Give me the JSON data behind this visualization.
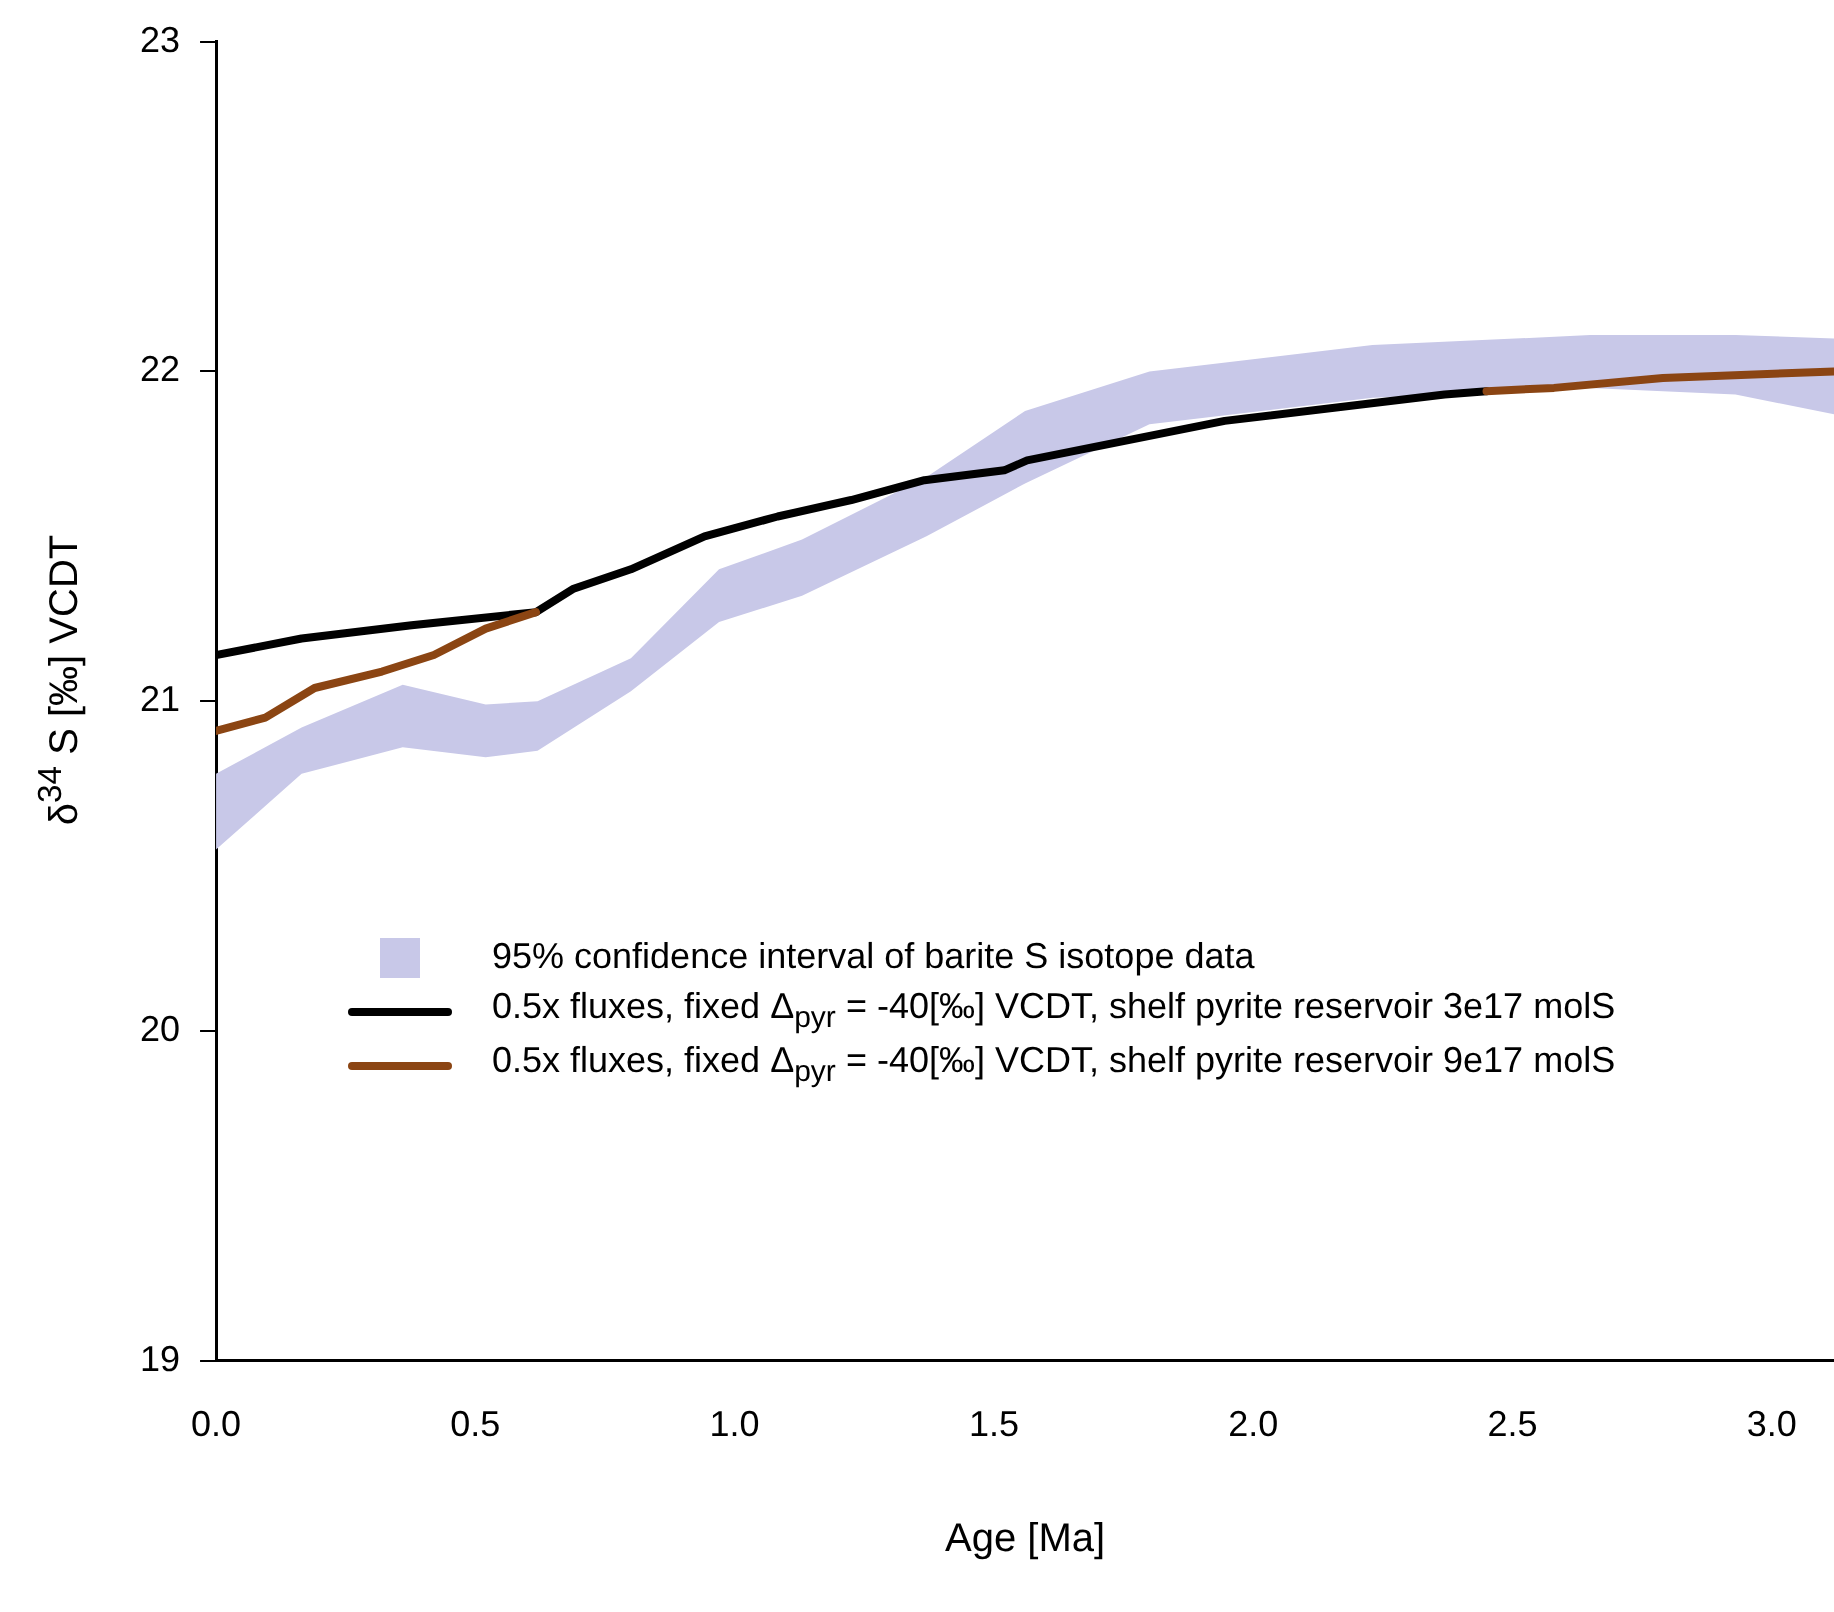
{
  "chart_data": {
    "type": "line",
    "xlabel": "Age [Ma]",
    "ylabel": "δ$^{34}$ S [‰] VCDT",
    "xlim": [
      0,
      3.12
    ],
    "ylim": [
      19,
      23
    ],
    "xticks": [
      {
        "value": 0,
        "label": "0.0"
      },
      {
        "value": 0.5,
        "label": "0.5"
      },
      {
        "value": 1,
        "label": "1.0"
      },
      {
        "value": 1.5,
        "label": "1.5"
      },
      {
        "value": 2,
        "label": "2.0"
      },
      {
        "value": 2.5,
        "label": "2.5"
      },
      {
        "value": 3,
        "label": "3.0"
      }
    ],
    "yticks": [
      19,
      20,
      21,
      22,
      23
    ],
    "grid": false,
    "legend": "bottom left",
    "marker": "none",
    "line_style": "solid",
    "series": [
      {
        "name": "95% confidence interval of barite S isotope data",
        "type": "area",
        "color": "#c8c8e8",
        "x": [
          0,
          0.165,
          0.36,
          0.52,
          0.62,
          0.8,
          0.97,
          1.13,
          1.37,
          1.56,
          1.8,
          2.23,
          2.65,
          2.93,
          3.12
        ],
        "values": [
          null,
          null,
          null,
          null,
          null,
          null,
          null,
          null,
          null,
          null,
          null,
          null,
          null,
          null,
          null
        ],
        "lower": [
          20.55,
          20.78,
          20.86,
          20.83,
          20.85,
          21.03,
          21.24,
          21.32,
          21.5,
          21.66,
          21.84,
          21.92,
          21.95,
          21.93,
          21.87
        ],
        "upper": [
          20.78,
          20.92,
          21.05,
          20.99,
          21.0,
          21.13,
          21.4,
          21.49,
          21.68,
          21.88,
          22.0,
          22.08,
          22.11,
          22.11,
          22.1
        ]
      },
      {
        "name": "0.5x fluxes, fixed  Δ$_{pyr}$ = -40[‰] VCDT, shelf pyrite reservoir 3e17 molS",
        "color": "#000000",
        "x": [
          0,
          0.165,
          0.377,
          0.617,
          0.688,
          0.8,
          0.942,
          1.083,
          1.225,
          1.366,
          1.52,
          1.564,
          1.945,
          2.369,
          2.45
        ],
        "values": [
          21.14,
          21.19,
          21.23,
          21.27,
          21.34,
          21.4,
          21.5,
          21.56,
          21.61,
          21.67,
          21.7,
          21.73,
          21.85,
          21.93,
          21.94
        ]
      },
      {
        "name": "0.5x fluxes, fixed Δ$_{pyr}$ = -40[‰] VCDT, shelf pyrite reservoir 9e17 molS",
        "color": "#8b4513",
        "x": [
          0,
          0.095,
          0.19,
          0.32,
          0.42,
          0.52,
          0.617,
          1.5,
          2.45,
          2.58,
          2.79,
          3.12
        ],
        "values": [
          20.91,
          20.95,
          21.04,
          21.09,
          21.14,
          21.22,
          21.27,
          null,
          21.94,
          21.95,
          21.98,
          22.0
        ]
      }
    ]
  }
}
